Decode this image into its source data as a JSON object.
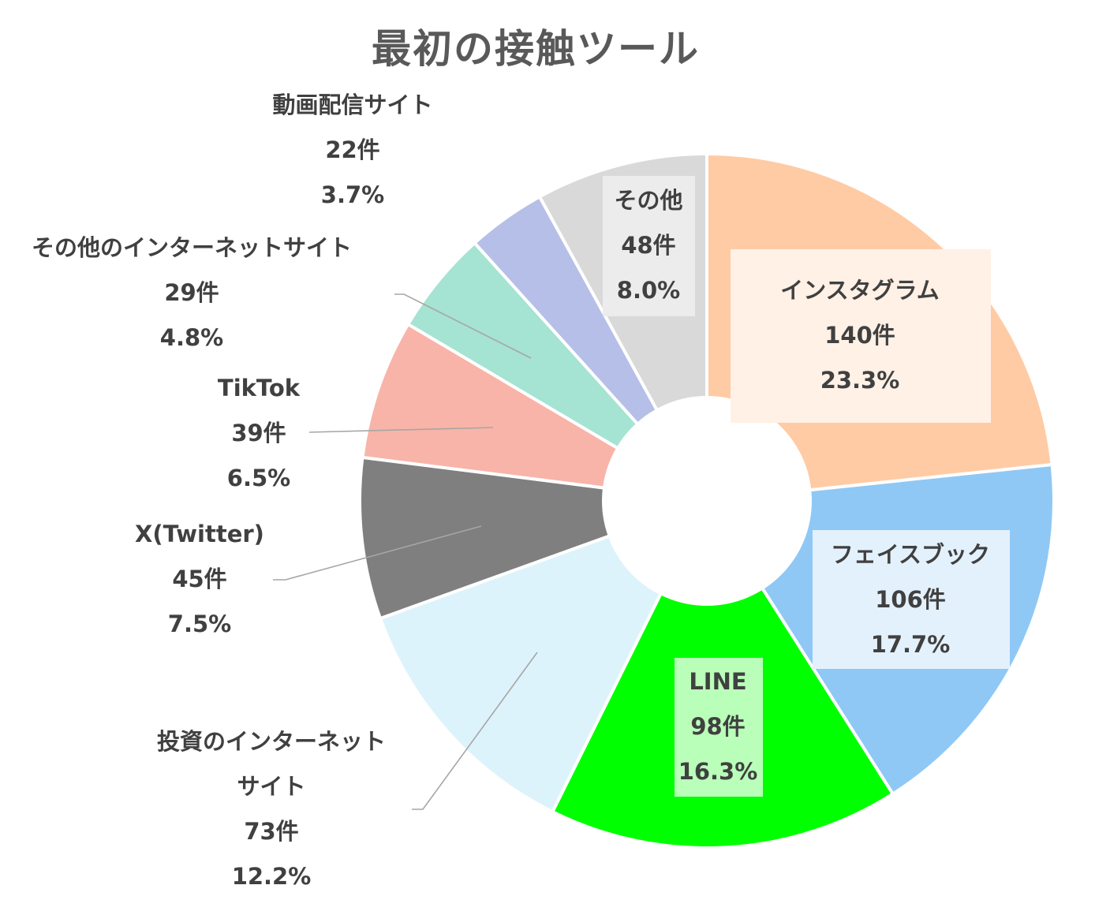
{
  "chart_data": {
    "type": "pie",
    "variant": "donut",
    "title": "最初の接触ツール",
    "start_angle": "top, clockwise",
    "slices": [
      {
        "name": "インスタグラム",
        "value": 140,
        "value_label": "140件",
        "percent_label": "23.3%",
        "color": "#FFCBA4",
        "label_box": "#FFF1E6"
      },
      {
        "name": "フェイスブック",
        "value": 106,
        "value_label": "106件",
        "percent_label": "17.7%",
        "color": "#8FC8F5",
        "label_box": "#E3F1FD"
      },
      {
        "name": "LINE",
        "value": 98,
        "value_label": "98件",
        "percent_label": "16.3%",
        "color": "#00FF00",
        "label_box": "#B9FFB9"
      },
      {
        "name": "投資のインターネット",
        "name_line2": "サイト",
        "value": 73,
        "value_label": "73件",
        "percent_label": "12.2%",
        "color": "#DDF3FB",
        "label_box": ""
      },
      {
        "name": "X(Twitter)",
        "value": 45,
        "value_label": "45件",
        "percent_label": "7.5%",
        "color": "#7F7F7F",
        "label_box": ""
      },
      {
        "name": "TikTok",
        "value": 39,
        "value_label": "39件",
        "percent_label": "6.5%",
        "color": "#F8B4A8",
        "label_box": ""
      },
      {
        "name": "その他のインターネットサイト",
        "value": 29,
        "value_label": "29件",
        "percent_label": "4.8%",
        "color": "#A5E3D2",
        "label_box": ""
      },
      {
        "name": "動画配信サイト",
        "value": 22,
        "value_label": "22件",
        "percent_label": "3.7%",
        "color": "#B6BFE8",
        "label_box": ""
      },
      {
        "name": "その他",
        "value": 48,
        "value_label": "48件",
        "percent_label": "8.0%",
        "color": "#D9D9D9",
        "label_box": "#ECECEC"
      }
    ]
  }
}
